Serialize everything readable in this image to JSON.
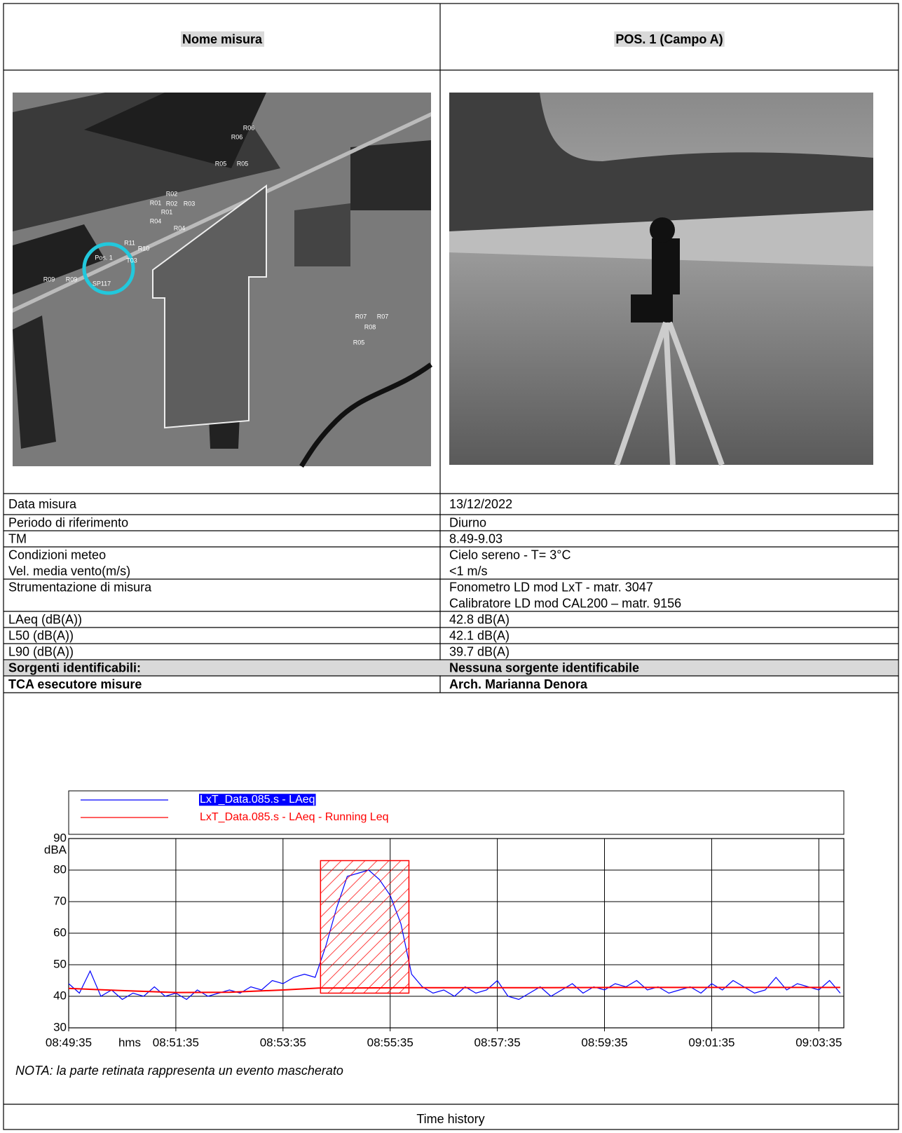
{
  "header": {
    "left": "Nome misura",
    "right": "POS. 1 (Campo A)"
  },
  "map_labels": [
    "R06",
    "R06",
    "R05",
    "R05",
    "R02",
    "R01",
    "R02",
    "R03",
    "R01",
    "R04",
    "R04",
    "R11",
    "R10",
    "Pos. 1",
    "T03",
    "SP117",
    "R09",
    "R09",
    "R07",
    "R07",
    "R08",
    "R05"
  ],
  "table": {
    "rows": [
      {
        "left": [
          "Data misura"
        ],
        "right": [
          "13/12/2022"
        ]
      },
      {
        "left": [
          "Periodo di riferimento"
        ],
        "right": [
          "Diurno"
        ]
      },
      {
        "left": [
          "TM"
        ],
        "right": [
          "8.49-9.03"
        ]
      },
      {
        "left": [
          "Condizioni meteo",
          "Vel. media vento(m/s)"
        ],
        "right": [
          "Cielo sereno - T= 3°C",
          "<1 m/s"
        ]
      },
      {
        "left": [
          "Strumentazione di misura"
        ],
        "right": [
          "Fonometro LD mod LxT -  matr. 3047",
          "Calibratore LD mod CAL200 – matr. 9156"
        ]
      },
      {
        "left": [
          "LAeq (dB(A))"
        ],
        "right": [
          "42.8 dB(A)"
        ]
      },
      {
        "left": [
          "L50 (dB(A))"
        ],
        "right": [
          "42.1 dB(A)"
        ]
      },
      {
        "left": [
          "L90 (dB(A))"
        ],
        "right": [
          "39.7 dB(A)"
        ]
      },
      {
        "left": [
          "Sorgenti identificabili:"
        ],
        "right": [
          "Nessuna sorgente identificabile"
        ],
        "bold": true,
        "shaded": true
      },
      {
        "left": [
          "TCA esecutore misure"
        ],
        "right": [
          "Arch. Marianna Denora"
        ],
        "bold": true
      }
    ]
  },
  "chart_data": {
    "type": "line",
    "y_unit": "dBA",
    "x_unit": "hms",
    "xlim": [
      31775,
      32643
    ],
    "ylim": [
      30,
      90
    ],
    "xticks": [
      {
        "value": 31775,
        "label": "08:49:35"
      },
      {
        "value": 31895,
        "label": "08:51:35"
      },
      {
        "value": 32015,
        "label": "08:53:35"
      },
      {
        "value": 32135,
        "label": "08:55:35"
      },
      {
        "value": 32255,
        "label": "08:57:35"
      },
      {
        "value": 32375,
        "label": "08:59:35"
      },
      {
        "value": 32495,
        "label": "09:01:35"
      },
      {
        "value": 32615,
        "label": "09:03:35"
      }
    ],
    "yticks": [
      30,
      40,
      50,
      60,
      70,
      80,
      90
    ],
    "grid": true,
    "masked_region": {
      "x": [
        32057,
        32156
      ],
      "y": [
        41,
        83
      ],
      "color": "#ff0000"
    },
    "series": [
      {
        "name": "LxT_Data.085.s - LAeq",
        "color": "#0000ff",
        "x": [
          31775,
          31787,
          31799,
          31811,
          31823,
          31835,
          31847,
          31859,
          31871,
          31883,
          31895,
          31907,
          31919,
          31931,
          31943,
          31955,
          31967,
          31979,
          31991,
          32003,
          32015,
          32027,
          32039,
          32051,
          32063,
          32075,
          32087,
          32099,
          32111,
          32123,
          32135,
          32147,
          32159,
          32171,
          32183,
          32195,
          32207,
          32219,
          32231,
          32243,
          32255,
          32267,
          32279,
          32291,
          32303,
          32315,
          32327,
          32339,
          32351,
          32363,
          32375,
          32387,
          32399,
          32411,
          32423,
          32435,
          32447,
          32459,
          32471,
          32483,
          32495,
          32507,
          32519,
          32531,
          32543,
          32555,
          32567,
          32579,
          32591,
          32603,
          32615,
          32627,
          32639
        ],
        "values": [
          44,
          41,
          48,
          40,
          42,
          39,
          41,
          40,
          43,
          40,
          41,
          39,
          42,
          40,
          41,
          42,
          41,
          43,
          42,
          45,
          44,
          46,
          47,
          46,
          56,
          68,
          78,
          79,
          80,
          77,
          72,
          63,
          47,
          43,
          41,
          42,
          40,
          43,
          41,
          42,
          45,
          40,
          39,
          41,
          43,
          40,
          42,
          44,
          41,
          43,
          42,
          44,
          43,
          45,
          42,
          43,
          41,
          42,
          43,
          41,
          44,
          42,
          45,
          43,
          41,
          42,
          46,
          42,
          44,
          43,
          42,
          45,
          41
        ]
      },
      {
        "name": "LxT_Data.085.s - LAeq - Running Leq",
        "color": "#ff0000",
        "x": [
          31775,
          31835,
          31895,
          31955,
          32015,
          32055,
          32160,
          32280,
          32400,
          32520,
          32639
        ],
        "values": [
          42.5,
          41.8,
          41.2,
          41.3,
          42.0,
          42.6,
          42.7,
          42.7,
          42.8,
          42.8,
          42.8
        ]
      }
    ],
    "note": "NOTA: la parte retinata rappresenta un evento mascherato",
    "caption": "Time history"
  }
}
